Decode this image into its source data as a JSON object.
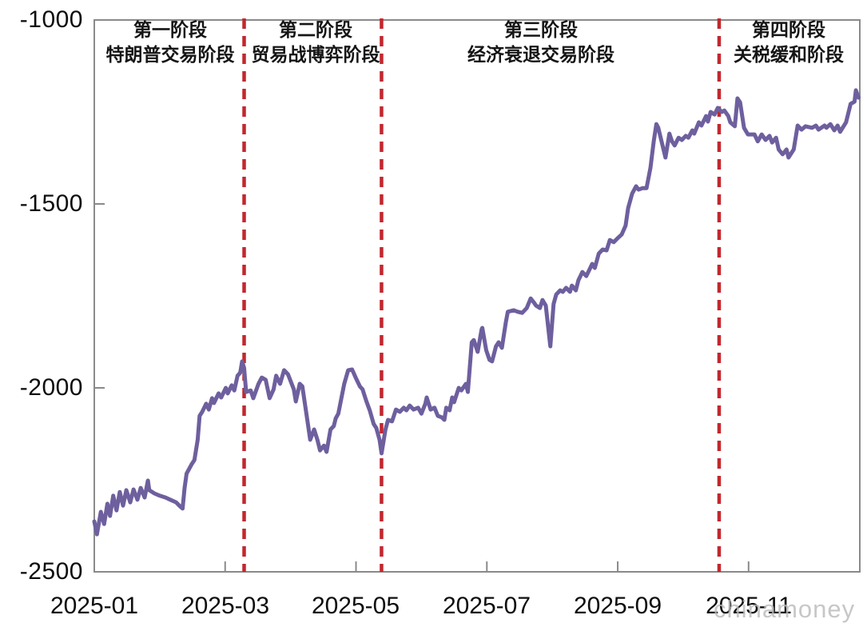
{
  "chart_data": {
    "type": "line",
    "x_axis": {
      "ticks": [
        {
          "label": "2025-01",
          "month": 1
        },
        {
          "label": "2025-03",
          "month": 3
        },
        {
          "label": "2025-05",
          "month": 5
        },
        {
          "label": "2025-07",
          "month": 7
        },
        {
          "label": "2025-09",
          "month": 9
        },
        {
          "label": "2025-11",
          "month": 11
        }
      ],
      "range_months": [
        1,
        12.7
      ],
      "unit": "month of 2025 (decimal, 1 = 2025-01-01)"
    },
    "y_axis": {
      "ticks": [
        {
          "label": "-1000",
          "value": -1000
        },
        {
          "label": "-1500",
          "value": -1500
        },
        {
          "label": "-2000",
          "value": -2000
        },
        {
          "label": "-2500",
          "value": -2500
        }
      ],
      "range": [
        -2500,
        -1000
      ]
    },
    "grid": false,
    "legend": "none",
    "phases": [
      {
        "label": "第一阶段",
        "sublabel": "特朗普交易阶段",
        "center_month": 2.16
      },
      {
        "label": "第二阶段",
        "sublabel": "贸易战博弈阶段",
        "center_month": 4.38
      },
      {
        "label": "第三阶段",
        "sublabel": "经济衰退交易阶段",
        "center_month": 7.83
      },
      {
        "label": "第四阶段",
        "sublabel": "关税缓和阶段",
        "center_month": 11.61
      }
    ],
    "dividers": {
      "style": "dashed",
      "color": "#c2272d",
      "months": [
        3.29,
        5.39,
        10.55
      ]
    },
    "series": [
      {
        "color": "#6e5f9e",
        "points": [
          [
            1.0,
            -2363
          ],
          [
            1.04,
            -2398
          ],
          [
            1.1,
            -2337
          ],
          [
            1.15,
            -2370
          ],
          [
            1.2,
            -2315
          ],
          [
            1.24,
            -2348
          ],
          [
            1.29,
            -2293
          ],
          [
            1.34,
            -2333
          ],
          [
            1.39,
            -2283
          ],
          [
            1.44,
            -2320
          ],
          [
            1.49,
            -2278
          ],
          [
            1.55,
            -2311
          ],
          [
            1.6,
            -2276
          ],
          [
            1.66,
            -2304
          ],
          [
            1.71,
            -2272
          ],
          [
            1.77,
            -2298
          ],
          [
            1.82,
            -2252
          ],
          [
            1.84,
            -2278
          ],
          [
            1.92,
            -2287
          ],
          [
            2.0,
            -2293
          ],
          [
            2.09,
            -2298
          ],
          [
            2.16,
            -2304
          ],
          [
            2.25,
            -2311
          ],
          [
            2.31,
            -2322
          ],
          [
            2.35,
            -2328
          ],
          [
            2.38,
            -2272
          ],
          [
            2.41,
            -2233
          ],
          [
            2.49,
            -2207
          ],
          [
            2.53,
            -2196
          ],
          [
            2.58,
            -2141
          ],
          [
            2.61,
            -2076
          ],
          [
            2.65,
            -2065
          ],
          [
            2.71,
            -2043
          ],
          [
            2.75,
            -2059
          ],
          [
            2.8,
            -2028
          ],
          [
            2.83,
            -2041
          ],
          [
            2.9,
            -2015
          ],
          [
            2.94,
            -2026
          ],
          [
            3.01,
            -2000
          ],
          [
            3.04,
            -2015
          ],
          [
            3.1,
            -1993
          ],
          [
            3.14,
            -2007
          ],
          [
            3.19,
            -1967
          ],
          [
            3.23,
            -1959
          ],
          [
            3.26,
            -1928
          ],
          [
            3.29,
            -1946
          ],
          [
            3.32,
            -2011
          ],
          [
            3.39,
            -2007
          ],
          [
            3.43,
            -2028
          ],
          [
            3.51,
            -1989
          ],
          [
            3.56,
            -1972
          ],
          [
            3.62,
            -1978
          ],
          [
            3.68,
            -2028
          ],
          [
            3.74,
            -2004
          ],
          [
            3.78,
            -1967
          ],
          [
            3.84,
            -1989
          ],
          [
            3.9,
            -1952
          ],
          [
            3.96,
            -1963
          ],
          [
            4.05,
            -2004
          ],
          [
            4.08,
            -2037
          ],
          [
            4.14,
            -1989
          ],
          [
            4.18,
            -1996
          ],
          [
            4.27,
            -2104
          ],
          [
            4.3,
            -2141
          ],
          [
            4.36,
            -2113
          ],
          [
            4.41,
            -2141
          ],
          [
            4.45,
            -2170
          ],
          [
            4.51,
            -2157
          ],
          [
            4.55,
            -2174
          ],
          [
            4.61,
            -2113
          ],
          [
            4.66,
            -2104
          ],
          [
            4.69,
            -2083
          ],
          [
            4.73,
            -2070
          ],
          [
            4.82,
            -1989
          ],
          [
            4.88,
            -1952
          ],
          [
            4.94,
            -1950
          ],
          [
            5.0,
            -1974
          ],
          [
            5.06,
            -1996
          ],
          [
            5.1,
            -2004
          ],
          [
            5.16,
            -2037
          ],
          [
            5.21,
            -2061
          ],
          [
            5.27,
            -2098
          ],
          [
            5.31,
            -2109
          ],
          [
            5.36,
            -2141
          ],
          [
            5.39,
            -2178
          ],
          [
            5.45,
            -2113
          ],
          [
            5.49,
            -2087
          ],
          [
            5.55,
            -2091
          ],
          [
            5.61,
            -2059
          ],
          [
            5.67,
            -2065
          ],
          [
            5.73,
            -2054
          ],
          [
            5.77,
            -2061
          ],
          [
            5.82,
            -2048
          ],
          [
            5.88,
            -2059
          ],
          [
            5.95,
            -2054
          ],
          [
            6.0,
            -2070
          ],
          [
            6.06,
            -2043
          ],
          [
            6.08,
            -2026
          ],
          [
            6.14,
            -2059
          ],
          [
            6.2,
            -2054
          ],
          [
            6.25,
            -2076
          ],
          [
            6.31,
            -2080
          ],
          [
            6.35,
            -2087
          ],
          [
            6.38,
            -2054
          ],
          [
            6.43,
            -2061
          ],
          [
            6.47,
            -2026
          ],
          [
            6.5,
            -2039
          ],
          [
            6.57,
            -2000
          ],
          [
            6.61,
            -2007
          ],
          [
            6.68,
            -1989
          ],
          [
            6.71,
            -2011
          ],
          [
            6.77,
            -1876
          ],
          [
            6.8,
            -1870
          ],
          [
            6.86,
            -1902
          ],
          [
            6.92,
            -1841
          ],
          [
            6.93,
            -1837
          ],
          [
            6.99,
            -1898
          ],
          [
            7.04,
            -1924
          ],
          [
            7.08,
            -1928
          ],
          [
            7.14,
            -1887
          ],
          [
            7.18,
            -1876
          ],
          [
            7.23,
            -1891
          ],
          [
            7.29,
            -1822
          ],
          [
            7.32,
            -1793
          ],
          [
            7.41,
            -1789
          ],
          [
            7.47,
            -1793
          ],
          [
            7.54,
            -1796
          ],
          [
            7.61,
            -1783
          ],
          [
            7.67,
            -1757
          ],
          [
            7.72,
            -1768
          ],
          [
            7.75,
            -1776
          ],
          [
            7.81,
            -1783
          ],
          [
            7.85,
            -1761
          ],
          [
            7.9,
            -1776
          ],
          [
            7.97,
            -1887
          ],
          [
            8.02,
            -1772
          ],
          [
            8.06,
            -1746
          ],
          [
            8.12,
            -1735
          ],
          [
            8.16,
            -1739
          ],
          [
            8.21,
            -1728
          ],
          [
            8.27,
            -1739
          ],
          [
            8.3,
            -1722
          ],
          [
            8.36,
            -1735
          ],
          [
            8.4,
            -1707
          ],
          [
            8.43,
            -1696
          ],
          [
            8.46,
            -1685
          ],
          [
            8.52,
            -1696
          ],
          [
            8.58,
            -1674
          ],
          [
            8.61,
            -1663
          ],
          [
            8.65,
            -1674
          ],
          [
            8.71,
            -1635
          ],
          [
            8.77,
            -1624
          ],
          [
            8.83,
            -1626
          ],
          [
            8.88,
            -1598
          ],
          [
            8.94,
            -1604
          ],
          [
            9.0,
            -1593
          ],
          [
            9.06,
            -1583
          ],
          [
            9.12,
            -1559
          ],
          [
            9.16,
            -1511
          ],
          [
            9.22,
            -1472
          ],
          [
            9.28,
            -1452
          ],
          [
            9.32,
            -1461
          ],
          [
            9.38,
            -1457
          ],
          [
            9.44,
            -1457
          ],
          [
            9.5,
            -1402
          ],
          [
            9.55,
            -1330
          ],
          [
            9.59,
            -1283
          ],
          [
            9.62,
            -1293
          ],
          [
            9.67,
            -1330
          ],
          [
            9.73,
            -1374
          ],
          [
            9.79,
            -1309
          ],
          [
            9.83,
            -1330
          ],
          [
            9.87,
            -1341
          ],
          [
            9.93,
            -1320
          ],
          [
            9.98,
            -1326
          ],
          [
            10.04,
            -1315
          ],
          [
            10.08,
            -1320
          ],
          [
            10.14,
            -1300
          ],
          [
            10.17,
            -1309
          ],
          [
            10.24,
            -1278
          ],
          [
            10.28,
            -1287
          ],
          [
            10.35,
            -1261
          ],
          [
            10.38,
            -1276
          ],
          [
            10.42,
            -1250
          ],
          [
            10.48,
            -1257
          ],
          [
            10.53,
            -1239
          ],
          [
            10.59,
            -1250
          ],
          [
            10.63,
            -1246
          ],
          [
            10.69,
            -1261
          ],
          [
            10.72,
            -1278
          ],
          [
            10.79,
            -1289
          ],
          [
            10.83,
            -1213
          ],
          [
            10.87,
            -1224
          ],
          [
            10.93,
            -1293
          ],
          [
            10.99,
            -1311
          ],
          [
            11.09,
            -1311
          ],
          [
            11.14,
            -1330
          ],
          [
            11.2,
            -1311
          ],
          [
            11.26,
            -1326
          ],
          [
            11.32,
            -1315
          ],
          [
            11.36,
            -1333
          ],
          [
            11.42,
            -1320
          ],
          [
            11.46,
            -1352
          ],
          [
            11.52,
            -1365
          ],
          [
            11.58,
            -1352
          ],
          [
            11.61,
            -1374
          ],
          [
            11.69,
            -1352
          ],
          [
            11.75,
            -1287
          ],
          [
            11.81,
            -1298
          ],
          [
            11.87,
            -1289
          ],
          [
            11.97,
            -1293
          ],
          [
            12.03,
            -1287
          ],
          [
            12.07,
            -1298
          ],
          [
            12.16,
            -1287
          ],
          [
            12.19,
            -1293
          ],
          [
            12.25,
            -1283
          ],
          [
            12.31,
            -1300
          ],
          [
            12.36,
            -1287
          ],
          [
            12.4,
            -1304
          ],
          [
            12.49,
            -1278
          ],
          [
            12.56,
            -1228
          ],
          [
            12.62,
            -1222
          ],
          [
            12.64,
            -1191
          ],
          [
            12.68,
            -1211
          ]
        ]
      }
    ],
    "colors": {
      "frame": "#8a8a8a",
      "line": "#6e5f9e",
      "divider": "#c2272d",
      "text": "#0e0e0e"
    }
  },
  "watermark": {
    "text": "chinamoney",
    "color": "#bcbcbc"
  }
}
